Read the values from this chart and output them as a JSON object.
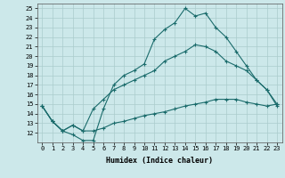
{
  "xlabel": "Humidex (Indice chaleur)",
  "bg_color": "#cce8ea",
  "grid_color": "#aacccc",
  "line_color": "#1a6b6b",
  "xlim": [
    -0.5,
    23.5
  ],
  "ylim": [
    11,
    25.5
  ],
  "xticks": [
    0,
    1,
    2,
    3,
    4,
    5,
    6,
    7,
    8,
    9,
    10,
    11,
    12,
    13,
    14,
    15,
    16,
    17,
    18,
    19,
    20,
    21,
    22,
    23
  ],
  "yticks": [
    12,
    13,
    14,
    15,
    16,
    17,
    18,
    19,
    20,
    21,
    22,
    23,
    24,
    25
  ],
  "line1_x": [
    0,
    1,
    2,
    3,
    4,
    5,
    6,
    7,
    8,
    9,
    10,
    11,
    12,
    13,
    14,
    15,
    16,
    17,
    18,
    19,
    20,
    21,
    22,
    23
  ],
  "line1_y": [
    14.8,
    13.2,
    12.2,
    11.8,
    11.2,
    11.2,
    14.5,
    17.0,
    18.0,
    18.5,
    19.2,
    21.8,
    22.8,
    23.5,
    25.0,
    24.2,
    24.5,
    23.0,
    22.0,
    20.5,
    19.0,
    17.5,
    16.5,
    14.8
  ],
  "line2_x": [
    0,
    1,
    2,
    3,
    4,
    5,
    6,
    7,
    8,
    9,
    10,
    11,
    12,
    13,
    14,
    15,
    16,
    17,
    18,
    19,
    20,
    21,
    22,
    23
  ],
  "line2_y": [
    14.8,
    13.2,
    12.2,
    12.8,
    12.2,
    14.5,
    15.5,
    16.5,
    17.0,
    17.5,
    18.0,
    18.5,
    19.5,
    20.0,
    20.5,
    21.2,
    21.0,
    20.5,
    19.5,
    19.0,
    18.5,
    17.5,
    16.5,
    15.0
  ],
  "line3_x": [
    0,
    1,
    2,
    3,
    4,
    5,
    6,
    7,
    8,
    9,
    10,
    11,
    12,
    13,
    14,
    15,
    16,
    17,
    18,
    19,
    20,
    21,
    22,
    23
  ],
  "line3_y": [
    14.8,
    13.2,
    12.2,
    12.8,
    12.2,
    12.2,
    12.5,
    13.0,
    13.2,
    13.5,
    13.8,
    14.0,
    14.2,
    14.5,
    14.8,
    15.0,
    15.2,
    15.5,
    15.5,
    15.5,
    15.2,
    15.0,
    14.8,
    15.0
  ]
}
